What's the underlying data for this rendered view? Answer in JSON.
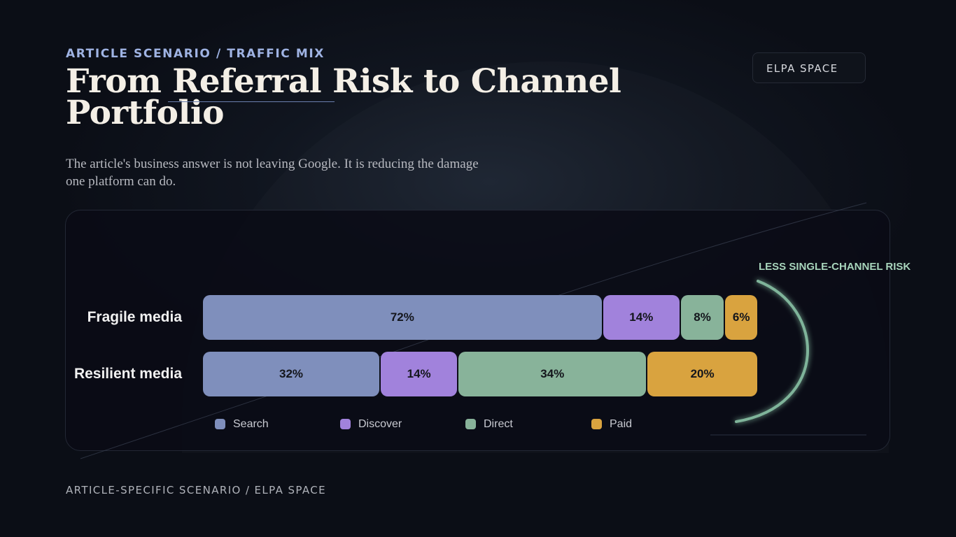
{
  "header": {
    "eyebrow": "ARTICLE SCENARIO / TRAFFIC MIX",
    "title": "From Referral Risk to Channel Portfolio",
    "subtitle": "The article's business answer is not leaving Google. It is reducing the damage one platform can do."
  },
  "badge": {
    "label": "ELPA SPACE"
  },
  "annotation": {
    "text": "LESS SINGLE-CHANNEL RISK"
  },
  "footer": {
    "text": "ARTICLE-SPECIFIC SCENARIO / ELPA SPACE"
  },
  "colors": {
    "Search": "#7f8fbc",
    "Discover": "#a182dc",
    "Direct": "#88b39a",
    "Paid": "#d9a33f",
    "arc": "#7fb49a"
  },
  "chart_data": {
    "type": "bar",
    "orientation": "horizontal",
    "stacked": true,
    "normalized": true,
    "categories": [
      "Fragile media",
      "Resilient media"
    ],
    "series": [
      {
        "name": "Search",
        "values": [
          72,
          32
        ]
      },
      {
        "name": "Discover",
        "values": [
          14,
          14
        ]
      },
      {
        "name": "Direct",
        "values": [
          8,
          34
        ]
      },
      {
        "name": "Paid",
        "values": [
          6,
          20
        ]
      }
    ],
    "value_format": "percent",
    "legend": "bottom",
    "grid": false
  }
}
